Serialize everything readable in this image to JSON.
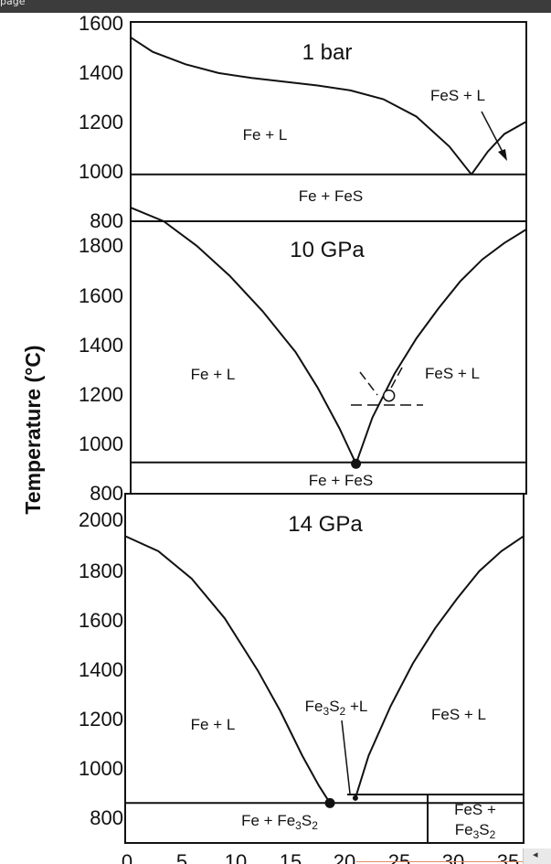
{
  "window": {
    "title": "page"
  },
  "chart_data": {
    "type": "line",
    "ylabel": "Temperature (°C)",
    "xlim": [
      0,
      36
    ],
    "x_ticks": [
      "0",
      "5",
      "10",
      "15",
      "20",
      "25",
      "30",
      "35"
    ],
    "panels": [
      {
        "title": "1 bar",
        "ylim": [
          800,
          1600
        ],
        "y_ticks": [
          "800",
          "1000",
          "1200",
          "1400",
          "1600"
        ],
        "regions": [
          "Fe + L",
          "FeS + L",
          "Fe + FeS"
        ],
        "series": [
          {
            "x": [
              0,
              2,
              5,
              8,
              11,
              14,
              17,
              20,
              23,
              26,
              29,
              31
            ],
            "y": [
              1538,
              1480,
              1430,
              1395,
              1375,
              1360,
              1345,
              1325,
              1290,
              1220,
              1100,
              988
            ]
          },
          {
            "x": [
              31,
              32.5,
              34,
              36
            ],
            "y": [
              988,
              1080,
              1150,
              1200
            ]
          },
          {
            "x": [
              0,
              36
            ],
            "y": [
              988,
              988
            ]
          }
        ],
        "eutectic": {
          "x": 31,
          "y": 988
        }
      },
      {
        "title": "10 GPa",
        "ylim": [
          800,
          1800
        ],
        "y_ticks": [
          "800",
          "1000",
          "1200",
          "1400",
          "1600",
          "1800"
        ],
        "regions": [
          "Fe + L",
          "FeS + L",
          "Fe + FeS"
        ],
        "series": [
          {
            "x": [
              0,
              3,
              6,
              9,
              12,
              15,
              17,
              19,
              20.5
            ],
            "y": [
              1850,
              1800,
              1710,
              1600,
              1470,
              1320,
              1190,
              1040,
              910
            ]
          },
          {
            "x": [
              20.5,
              22,
              24,
              26,
              28,
              30,
              32,
              34,
              36
            ],
            "y": [
              910,
              1080,
              1240,
              1370,
              1480,
              1580,
              1660,
              1720,
              1770
            ]
          },
          {
            "x": [
              0,
              36
            ],
            "y": [
              915,
              915
            ]
          }
        ],
        "eutectic": {
          "x": 20.5,
          "y": 910
        },
        "open_point": {
          "x": 23.5,
          "y": 1160
        }
      },
      {
        "title": "14 GPa",
        "ylim": [
          700,
          2100
        ],
        "y_ticks": [
          "800",
          "1000",
          "1200",
          "1400",
          "1600",
          "1800",
          "2000"
        ],
        "regions": [
          "Fe + L",
          "FeS + L",
          "Fe3S2 +L",
          "Fe + Fe3S2",
          "FeS + Fe3S2"
        ],
        "series": [
          {
            "x": [
              0,
              3,
              6,
              9,
              12,
              14,
              16,
              17.5,
              18.5
            ],
            "y": [
              1930,
              1870,
              1760,
              1600,
              1390,
              1230,
              1050,
              930,
              860
            ]
          },
          {
            "x": [
              20.8,
              22,
              24,
              26,
              28,
              30,
              32,
              34,
              36
            ],
            "y": [
              880,
              1050,
              1250,
              1420,
              1560,
              1680,
              1790,
              1870,
              1930
            ]
          },
          {
            "x": [
              0,
              36
            ],
            "y": [
              860,
              860
            ]
          }
        ],
        "eutectic": {
          "x": 18.5,
          "y": 860
        },
        "peritectic": {
          "x": 20.8,
          "y": 880
        }
      }
    ]
  }
}
